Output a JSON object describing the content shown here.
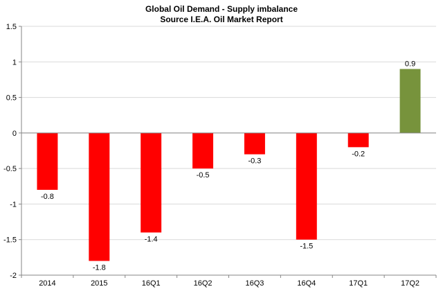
{
  "chart_data": {
    "type": "bar",
    "title": "Global Oil Demand - Supply imbalance",
    "subtitle": "Source I.E.A. Oil Market Report",
    "xlabel": "",
    "ylabel": "",
    "categories": [
      "2014",
      "2015",
      "16Q1",
      "16Q2",
      "16Q3",
      "16Q4",
      "17Q1",
      "17Q2"
    ],
    "values": [
      -0.8,
      -1.8,
      -1.4,
      -0.5,
      -0.3,
      -1.5,
      -0.2,
      0.9
    ],
    "data_labels": [
      "-0.8",
      "-1.8",
      "-1.4",
      "-0.5",
      "-0.3",
      "-1.5",
      "-0.2",
      "0.9"
    ],
    "ylim": [
      -2,
      1.5
    ],
    "yticks": [
      1.5,
      1,
      0.5,
      0,
      -0.5,
      -1,
      -1.5,
      -2
    ],
    "ytick_labels": [
      "1.5",
      "1",
      "0.5",
      "0",
      "-0.5",
      "-1",
      "-1.5",
      "-2"
    ],
    "grid": true,
    "legend": "none",
    "colors": {
      "negative": "#ff0000",
      "positive": "#77933c",
      "grid": "#d9d9d9",
      "axis": "#868686"
    }
  }
}
